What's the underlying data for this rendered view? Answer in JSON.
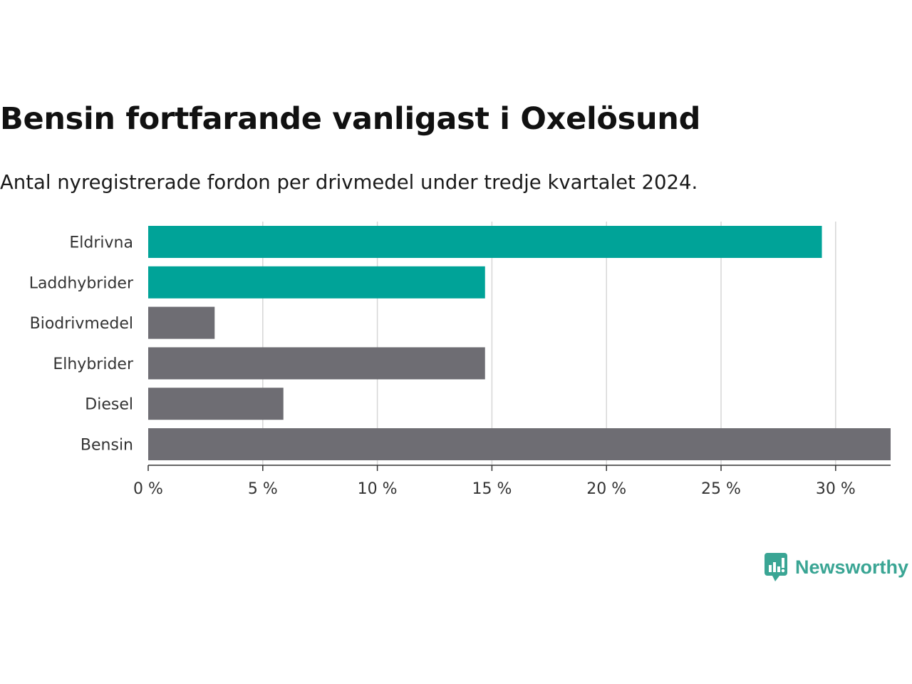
{
  "header": {
    "title": "Bensin fortfarande vanligast i Oxelösund",
    "subtitle": "Antal nyregistrerade fordon per drivmedel under tredje kvartalet 2024."
  },
  "brand": {
    "name": "Newsworthy",
    "logo_icon": "bar-chart-speech-bubble-icon",
    "color": "#3aa594"
  },
  "colors": {
    "highlight": "#00a398",
    "default": "#6e6d73",
    "grid": "#d6d6d6",
    "axis": "#333333",
    "text": "#333333"
  },
  "chart_data": {
    "type": "bar",
    "orientation": "horizontal",
    "categories": [
      "Eldrivna",
      "Laddhybrider",
      "Biodrivmedel",
      "Elhybrider",
      "Diesel",
      "Bensin"
    ],
    "values": [
      29.4,
      14.7,
      2.9,
      14.7,
      5.9,
      32.4
    ],
    "highlighted": [
      true,
      true,
      false,
      false,
      false,
      false
    ],
    "xlim": [
      0,
      32.4
    ],
    "xticks": [
      0,
      5,
      10,
      15,
      20,
      25,
      30
    ],
    "xtick_labels": [
      "0 %",
      "5 %",
      "10 %",
      "15 %",
      "20 %",
      "25 %",
      "30 %"
    ],
    "grid": true,
    "legend": "none"
  }
}
